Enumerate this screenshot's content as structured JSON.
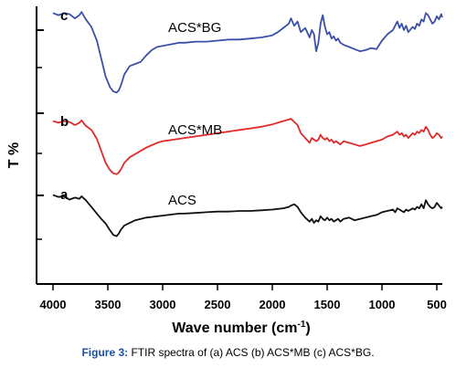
{
  "chart_data": {
    "type": "line",
    "title": "",
    "xlabel": "Wave number (cm",
    "xlabel_sup": "-1",
    "xlabel_close": ")",
    "ylabel": "T %",
    "xlim": [
      4000,
      450
    ],
    "x_reversed": true,
    "x_ticks": [
      4000,
      3500,
      3000,
      2500,
      2000,
      1500,
      1000,
      500
    ],
    "x_tick_labels": [
      "4000",
      "3500",
      "3000",
      "2500",
      "2000",
      "1500",
      "1000",
      "500"
    ],
    "y_tick_labels_shown": false,
    "series": [
      {
        "name": "ACS*BG",
        "panel": "c",
        "color": "#3b50a8",
        "x": [
          4000,
          3950,
          3900,
          3850,
          3800,
          3760,
          3740,
          3700,
          3650,
          3600,
          3560,
          3520,
          3480,
          3450,
          3420,
          3400,
          3380,
          3350,
          3300,
          3250,
          3200,
          3150,
          3100,
          3050,
          3000,
          2950,
          2900,
          2850,
          2800,
          2700,
          2600,
          2500,
          2400,
          2300,
          2200,
          2100,
          2000,
          1950,
          1900,
          1850,
          1830,
          1800,
          1770,
          1740,
          1700,
          1660,
          1640,
          1620,
          1600,
          1580,
          1560,
          1540,
          1520,
          1500,
          1480,
          1460,
          1440,
          1420,
          1400,
          1380,
          1350,
          1300,
          1250,
          1200,
          1150,
          1100,
          1050,
          1000,
          950,
          900,
          880,
          860,
          840,
          820,
          800,
          780,
          760,
          720,
          700,
          680,
          660,
          640,
          620,
          600,
          580,
          560,
          540,
          520,
          500,
          480,
          460,
          450
        ],
        "y": [
          98,
          96,
          98,
          97,
          93,
          96,
          99,
          92,
          85,
          72,
          55,
          38,
          28,
          24,
          23,
          25,
          30,
          40,
          48,
          50,
          52,
          58,
          63,
          66,
          67,
          68,
          69,
          70,
          70,
          71,
          71,
          72,
          73,
          73,
          74,
          75,
          77,
          80,
          84,
          88,
          93,
          86,
          90,
          80,
          84,
          75,
          82,
          78,
          62,
          70,
          88,
          96,
          85,
          78,
          80,
          74,
          76,
          72,
          74,
          70,
          68,
          66,
          64,
          62,
          63,
          65,
          64,
          72,
          78,
          82,
          86,
          90,
          84,
          88,
          82,
          86,
          80,
          85,
          83,
          88,
          86,
          92,
          90,
          98,
          96,
          92,
          88,
          90,
          95,
          92,
          97,
          94
        ]
      },
      {
        "name": "ACS*MB",
        "panel": "b",
        "color": "#e02a2a",
        "x": [
          4000,
          3950,
          3900,
          3850,
          3800,
          3760,
          3740,
          3700,
          3650,
          3600,
          3560,
          3520,
          3480,
          3450,
          3420,
          3400,
          3380,
          3350,
          3300,
          3250,
          3200,
          3150,
          3100,
          3050,
          3000,
          2950,
          2900,
          2850,
          2800,
          2700,
          2600,
          2500,
          2400,
          2300,
          2200,
          2100,
          2000,
          1950,
          1900,
          1850,
          1830,
          1800,
          1770,
          1740,
          1700,
          1660,
          1640,
          1620,
          1600,
          1580,
          1560,
          1540,
          1520,
          1500,
          1480,
          1460,
          1440,
          1420,
          1400,
          1380,
          1350,
          1300,
          1250,
          1200,
          1150,
          1100,
          1050,
          1000,
          950,
          900,
          880,
          860,
          840,
          820,
          800,
          780,
          760,
          720,
          700,
          680,
          660,
          640,
          620,
          600,
          580,
          560,
          540,
          520,
          500,
          480,
          460,
          450
        ],
        "y": [
          97,
          95,
          97,
          96,
          92,
          95,
          98,
          91,
          86,
          75,
          60,
          45,
          36,
          32,
          31,
          33,
          37,
          45,
          52,
          56,
          60,
          64,
          67,
          70,
          72,
          73,
          74,
          75,
          76,
          78,
          80,
          82,
          84,
          86,
          88,
          90,
          93,
          95,
          97,
          99,
          100,
          96,
          92,
          82,
          76,
          70,
          76,
          74,
          72,
          74,
          80,
          76,
          74,
          76,
          72,
          74,
          70,
          72,
          70,
          68,
          72,
          70,
          68,
          66,
          68,
          70,
          72,
          74,
          78,
          80,
          82,
          84,
          80,
          82,
          78,
          80,
          76,
          82,
          80,
          84,
          82,
          86,
          84,
          90,
          86,
          80,
          76,
          78,
          82,
          80,
          76,
          78
        ]
      },
      {
        "name": "ACS",
        "panel": "a",
        "color": "#111111",
        "x": [
          4000,
          3950,
          3900,
          3850,
          3800,
          3760,
          3740,
          3700,
          3650,
          3600,
          3560,
          3520,
          3480,
          3450,
          3420,
          3400,
          3380,
          3350,
          3300,
          3250,
          3200,
          3150,
          3100,
          3050,
          3000,
          2950,
          2900,
          2850,
          2800,
          2700,
          2600,
          2500,
          2400,
          2300,
          2200,
          2100,
          2000,
          1950,
          1900,
          1850,
          1830,
          1800,
          1770,
          1740,
          1700,
          1660,
          1640,
          1620,
          1600,
          1580,
          1560,
          1540,
          1520,
          1500,
          1480,
          1460,
          1440,
          1420,
          1400,
          1380,
          1350,
          1300,
          1250,
          1200,
          1150,
          1100,
          1050,
          1000,
          950,
          900,
          880,
          860,
          840,
          820,
          800,
          780,
          760,
          720,
          700,
          680,
          660,
          640,
          620,
          600,
          580,
          560,
          540,
          520,
          500,
          480,
          460,
          450
        ],
        "y": [
          98,
          95,
          96,
          91,
          94,
          92,
          96,
          90,
          80,
          70,
          62,
          55,
          45,
          38,
          36,
          40,
          46,
          52,
          56,
          60,
          62,
          64,
          65,
          66,
          67,
          68,
          69,
          70,
          70,
          71,
          72,
          73,
          73,
          74,
          74,
          75,
          76,
          77,
          78,
          80,
          82,
          84,
          80,
          72,
          64,
          58,
          62,
          56,
          60,
          58,
          66,
          62,
          60,
          64,
          60,
          62,
          58,
          60,
          62,
          58,
          62,
          64,
          60,
          62,
          64,
          66,
          68,
          72,
          74,
          76,
          72,
          78,
          76,
          74,
          72,
          76,
          74,
          78,
          76,
          80,
          78,
          84,
          78,
          90,
          84,
          80,
          78,
          80,
          86,
          82,
          78,
          80
        ]
      }
    ],
    "annotations": {
      "panel_c": "c",
      "panel_b": "b",
      "panel_a": "a",
      "label_c": "ACS*BG",
      "label_b": "ACS*MB",
      "label_a": "ACS"
    },
    "grid": false,
    "legend": "none"
  },
  "caption": {
    "label": "Figure 3:",
    "text": " FTIR spectra of (a) ACS (b) ACS*MB (c) ACS*BG."
  }
}
